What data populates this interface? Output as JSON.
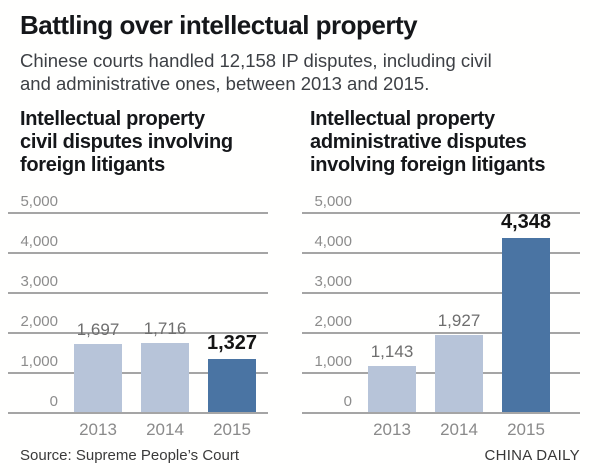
{
  "header": {
    "title": "Battling over intellectual property",
    "subtitle_lines": [
      "Chinese courts handled 12,158 IP disputes, including civil",
      "and administrative ones, between 2013 and 2015."
    ]
  },
  "footer": {
    "source": "Source: Supreme People’s Court",
    "credit": "CHINA DAILY"
  },
  "colors": {
    "bar_light": "#b7c4d9",
    "bar_dark": "#4a74a3",
    "grid": "#a5a5a5",
    "tick_text": "#8c8c8c",
    "axis_text": "#8a8a8a",
    "value_label_gray": "#6e6e6e",
    "value_label_black": "#141414"
  },
  "chart_data": [
    {
      "type": "bar",
      "title_lines": [
        "Intellectual property",
        "civil disputes involving",
        "foreign litigants"
      ],
      "categories": [
        "2013",
        "2014",
        "2015"
      ],
      "values": [
        1697,
        1716,
        1327
      ],
      "value_labels": [
        "1,697",
        "1,716",
        "1,327"
      ],
      "emphasized": [
        false,
        false,
        true
      ],
      "ylim": [
        0,
        5000
      ],
      "ytick_values": [
        5000,
        4000,
        3000,
        2000,
        1000,
        0
      ],
      "ytick_labels": [
        "5,000",
        "4,000",
        "3,000",
        "2,000",
        "1,000",
        "0"
      ],
      "grid": true,
      "legend": "none"
    },
    {
      "type": "bar",
      "title_lines": [
        "Intellectual property",
        "administrative disputes",
        "involving foreign litigants"
      ],
      "categories": [
        "2013",
        "2014",
        "2015"
      ],
      "values": [
        1143,
        1927,
        4348
      ],
      "value_labels": [
        "1,143",
        "1,927",
        "4,348"
      ],
      "emphasized": [
        false,
        false,
        true
      ],
      "ylim": [
        0,
        5000
      ],
      "ytick_values": [
        5000,
        4000,
        3000,
        2000,
        1000,
        0
      ],
      "ytick_labels": [
        "5,000",
        "4,000",
        "3,000",
        "2,000",
        "1,000",
        "0"
      ],
      "grid": true,
      "legend": "none"
    }
  ]
}
